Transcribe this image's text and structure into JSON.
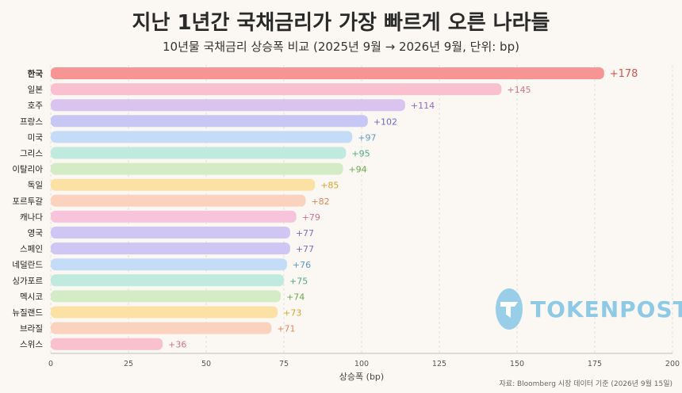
{
  "header": {
    "title": "지난 1년간 국채금리가 가장 빠르게 오른 나라들",
    "subtitle": "10년물 국채금리 상승폭 비교 (2025년 9월 → 2026년 9월, 단위: bp)"
  },
  "logo": {
    "text": "TOKENPOST"
  },
  "source": "자료: Bloomberg 시장 데이터 기준 (2026년 9월 15일)",
  "chart_data": {
    "type": "bar",
    "orientation": "horizontal",
    "categories": [
      "한국",
      "일본",
      "호주",
      "프랑스",
      "미국",
      "그리스",
      "이탈리아",
      "독일",
      "포르투갈",
      "캐나다",
      "영국",
      "스페인",
      "네덜란드",
      "싱가포르",
      "멕시코",
      "뉴질랜드",
      "브라질",
      "스위스"
    ],
    "values": [
      178,
      145,
      114,
      102,
      97,
      95,
      94,
      85,
      82,
      79,
      77,
      77,
      76,
      75,
      74,
      73,
      71,
      36
    ],
    "value_labels": [
      "+178",
      "+145",
      "+114",
      "+102",
      "+97",
      "+95",
      "+94",
      "+85",
      "+82",
      "+79",
      "+77",
      "+77",
      "+76",
      "+75",
      "+74",
      "+73",
      "+71",
      "+36"
    ],
    "bar_colors": [
      "#f79494",
      "#f9c0cf",
      "#d9c4f0",
      "#c8c6f4",
      "#c4dcf7",
      "#bfeadd",
      "#d3ecc6",
      "#fbe2a4",
      "#fad2bd",
      "#f7c4dc",
      "#cfc6f4",
      "#cfc6f4",
      "#c4dcf7",
      "#bfeadd",
      "#d3ecc6",
      "#fbe2a4",
      "#fad2bd",
      "#f9c0cf"
    ],
    "label_colors": [
      "#d9534f",
      "#d9707f",
      "#8e6bc2",
      "#6b69c2",
      "#5b99c9",
      "#4fa88a",
      "#6aa84f",
      "#d9a32e",
      "#d9885a",
      "#cf6f9c",
      "#7b6fc2",
      "#7b6fc2",
      "#5b99c9",
      "#4fa88a",
      "#6aa84f",
      "#d9a32e",
      "#d9885a",
      "#d9707f"
    ],
    "xlabel": "상승폭 (bp)",
    "ylabel": "",
    "xlim": [
      0,
      200
    ],
    "xticks": [
      0,
      25,
      50,
      75,
      100,
      125,
      150,
      175,
      200
    ],
    "grid": true
  }
}
